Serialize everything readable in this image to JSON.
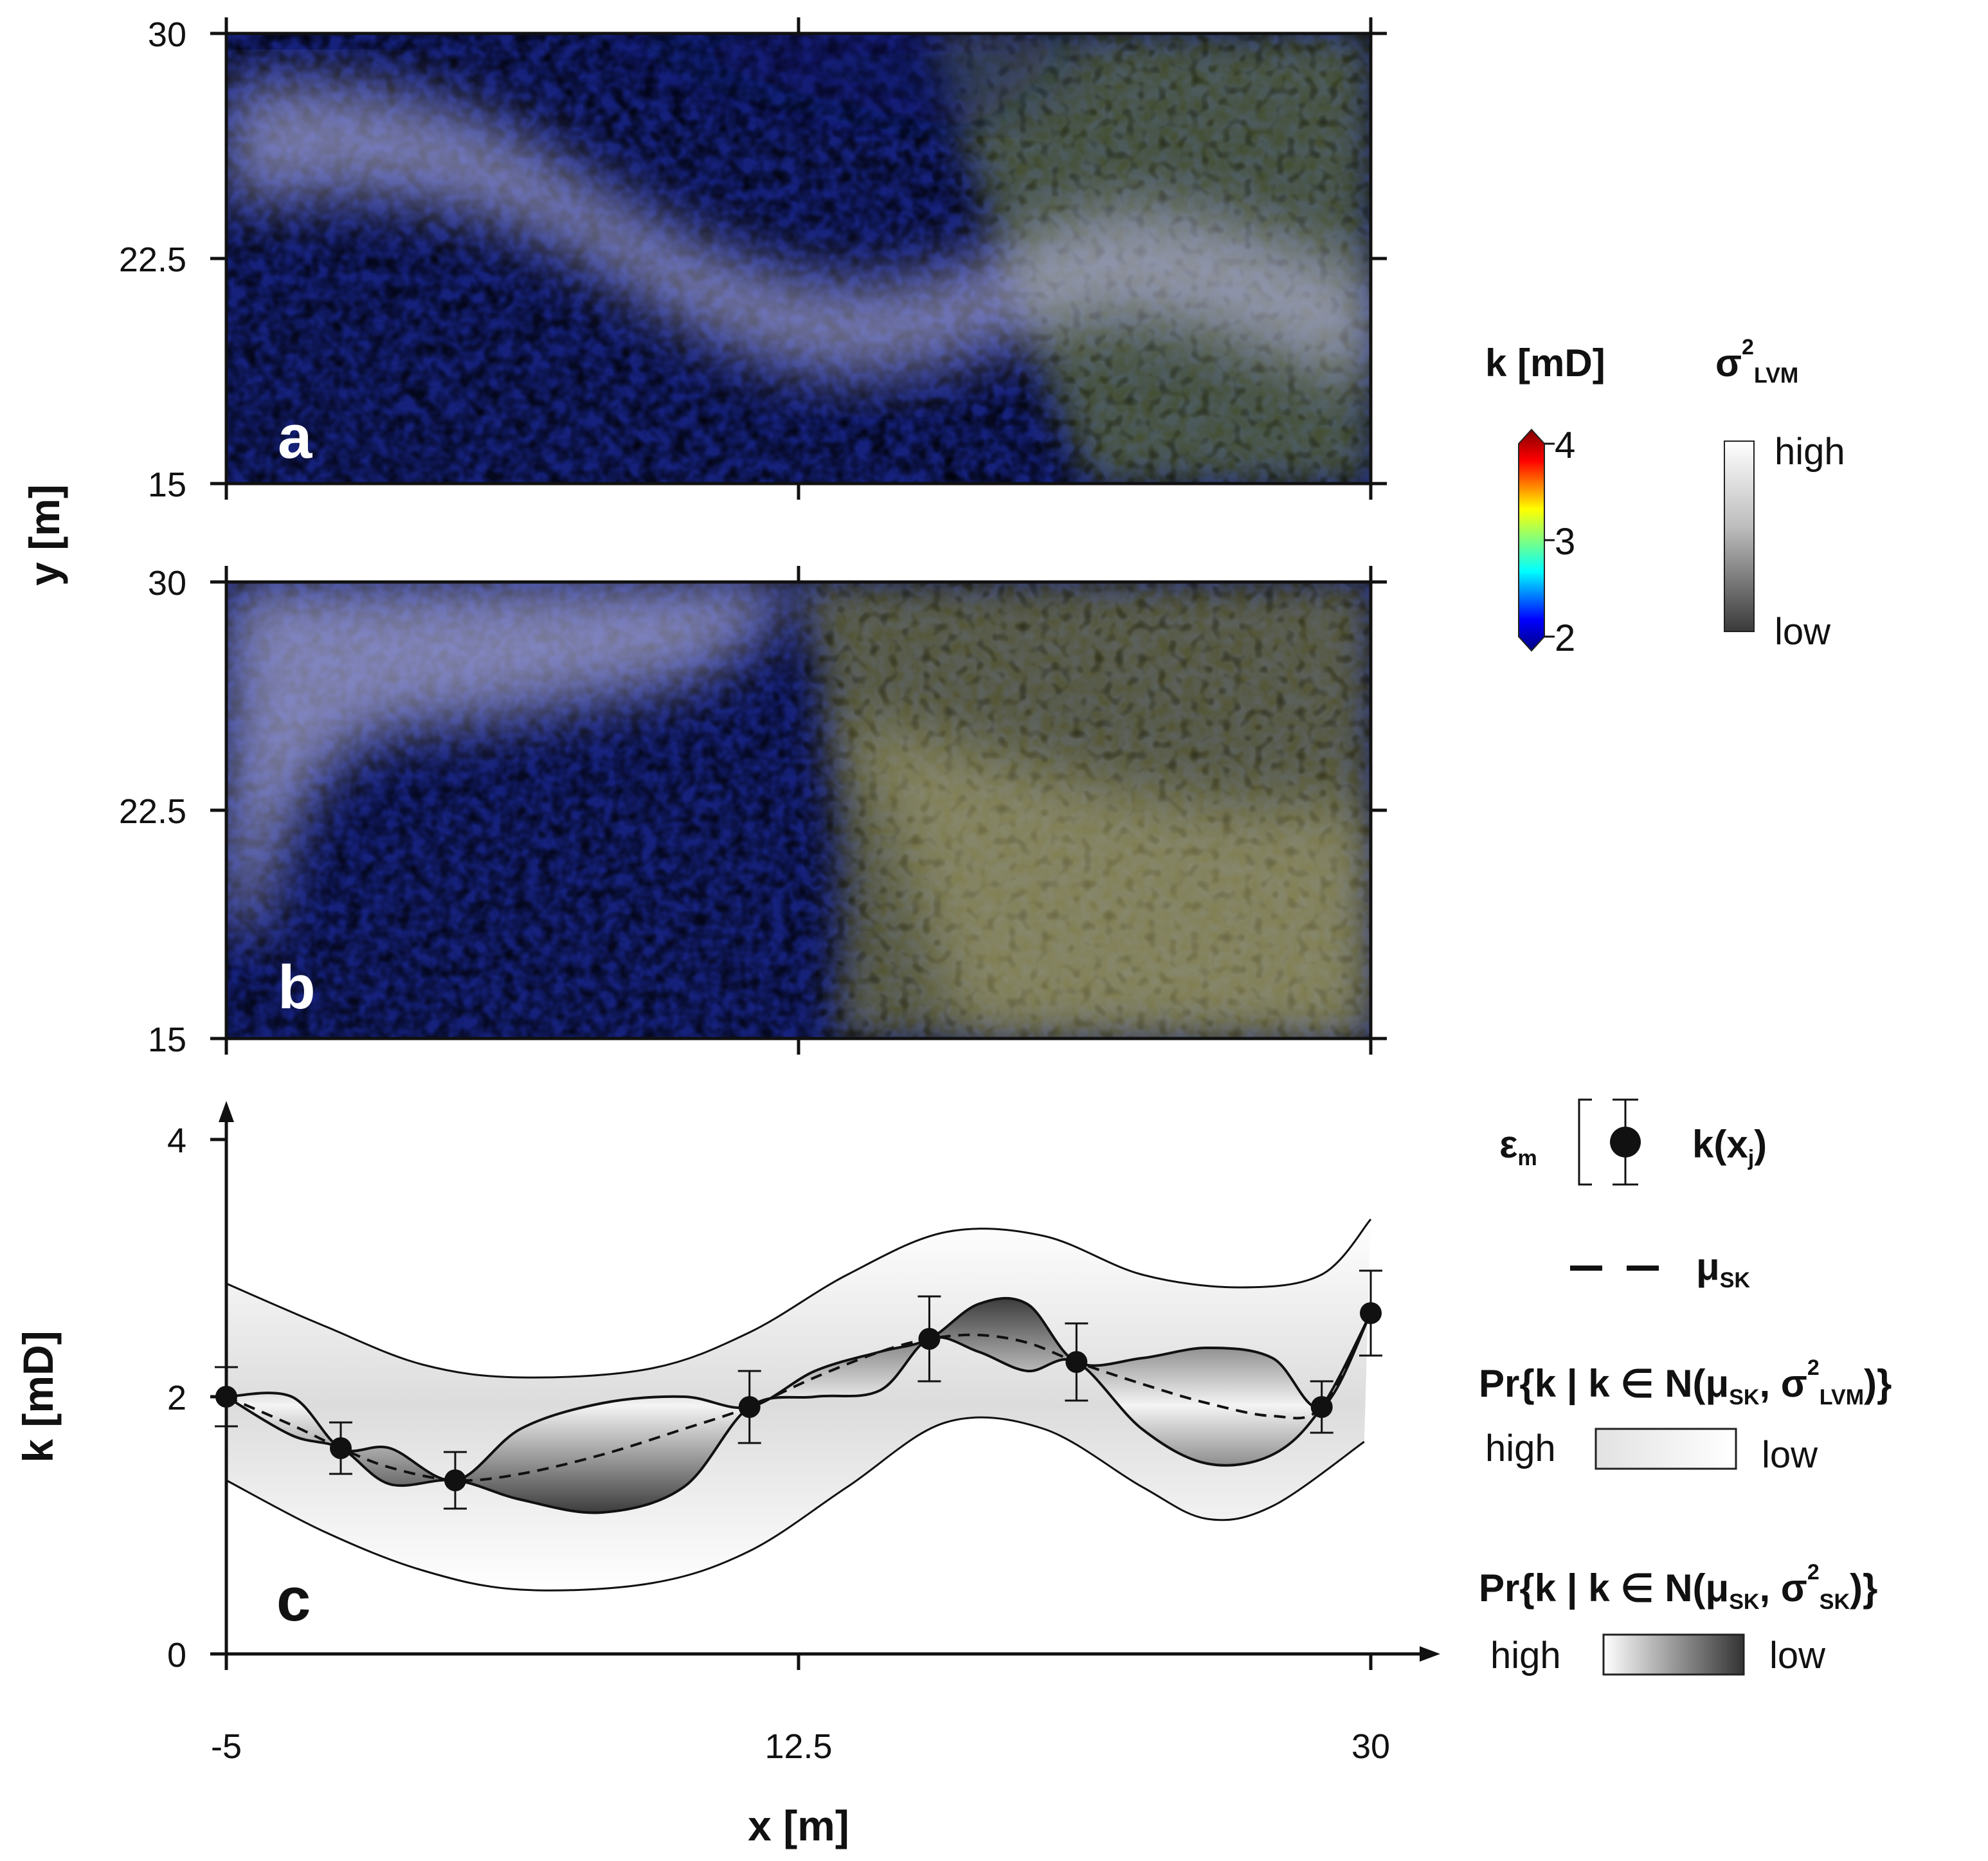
{
  "chart_data": [
    {
      "type": "heatmap",
      "panel": "a",
      "xlim": [
        -5,
        30
      ],
      "ylim": [
        15,
        30
      ],
      "x_ticks": [
        "-5",
        "12.5",
        "30"
      ],
      "y_ticks": [
        "15",
        "22.5",
        "30"
      ],
      "ylabel": "y [m]",
      "colorbar": {
        "label": "k [mD]",
        "min": 2,
        "max": 4,
        "ticks": [
          "4",
          "3",
          "2"
        ]
      },
      "overlay": {
        "label": "σ²LVM",
        "high": "high",
        "low": "low"
      }
    },
    {
      "type": "heatmap",
      "panel": "b",
      "xlim": [
        -5,
        30
      ],
      "ylim": [
        15,
        30
      ],
      "x_ticks": [
        "-5",
        "12.5",
        "30"
      ],
      "y_ticks": [
        "15",
        "22.5",
        "30"
      ]
    },
    {
      "type": "line",
      "panel": "c",
      "xlabel": "x [m]",
      "ylabel": "k [mD]",
      "xlim": [
        -5,
        30
      ],
      "ylim": [
        0,
        4.5
      ],
      "x_ticks": [
        "-5",
        "12.5",
        "30"
      ],
      "y_ticks": [
        "0",
        "2",
        "4"
      ],
      "points": {
        "name": "k(xj)",
        "x": [
          -5,
          -1.5,
          2,
          11,
          16.5,
          21,
          28.5,
          30
        ],
        "y": [
          2.0,
          1.6,
          1.35,
          1.92,
          2.45,
          2.27,
          1.92,
          2.65
        ],
        "err": [
          0.23,
          0.2,
          0.22,
          0.28,
          0.33,
          0.3,
          0.2,
          0.33
        ]
      },
      "mean_sk": {
        "name": "μSK",
        "x": [
          -5,
          -3,
          -1.5,
          0,
          2,
          4,
          6.5,
          9,
          11,
          13,
          15,
          16.5,
          18,
          19.5,
          21,
          23,
          25,
          27,
          28.5,
          30
        ],
        "y": [
          2.0,
          1.78,
          1.6,
          1.45,
          1.35,
          1.4,
          1.55,
          1.75,
          1.92,
          2.15,
          2.35,
          2.45,
          2.48,
          2.42,
          2.27,
          2.1,
          1.95,
          1.85,
          1.92,
          2.65
        ]
      },
      "sk_band_upper": {
        "x": [
          -5,
          -3,
          -1.5,
          0,
          2,
          4,
          6.5,
          9,
          11,
          13,
          15,
          16.5,
          18,
          19.5,
          21,
          23,
          25,
          27,
          28.5,
          30
        ],
        "y": [
          2.0,
          2.0,
          1.6,
          1.6,
          1.35,
          1.75,
          1.95,
          2.0,
          1.92,
          2.2,
          2.35,
          2.45,
          2.72,
          2.72,
          2.27,
          2.3,
          2.38,
          2.3,
          1.92,
          2.65
        ]
      },
      "sk_band_lower": {
        "x": [
          -5,
          -3,
          -1.5,
          0,
          2,
          4,
          6.5,
          9,
          11,
          13,
          15,
          16.5,
          18,
          19.5,
          21,
          23,
          25,
          27,
          28.5,
          30
        ],
        "y": [
          2.0,
          1.7,
          1.6,
          1.32,
          1.35,
          1.2,
          1.1,
          1.3,
          1.92,
          2.0,
          2.05,
          2.45,
          2.35,
          2.2,
          2.27,
          1.75,
          1.48,
          1.55,
          1.92,
          2.65
        ]
      },
      "lvm_upper": {
        "x": [
          -5,
          -2,
          1,
          4,
          8,
          11,
          14,
          17,
          20,
          23,
          26,
          28.5,
          30
        ],
        "y": [
          2.88,
          2.55,
          2.25,
          2.15,
          2.22,
          2.5,
          2.95,
          3.28,
          3.25,
          2.95,
          2.85,
          2.95,
          3.38
        ]
      },
      "lvm_lower": {
        "x": [
          -5,
          -2,
          1,
          4,
          8,
          11,
          14,
          17,
          20,
          23,
          25,
          27,
          29.8
        ],
        "y": [
          1.35,
          0.95,
          0.65,
          0.5,
          0.55,
          0.8,
          1.3,
          1.8,
          1.75,
          1.3,
          1.05,
          1.15,
          1.65
        ]
      }
    }
  ],
  "legend": {
    "k_title": "k [mD]",
    "sigma_lvm": "σ",
    "sigma_sup": "2",
    "sigma_sub": "LVM",
    "cb_ticks": [
      "4",
      "3",
      "2"
    ],
    "high": "high",
    "low": "low",
    "eps": "ε",
    "eps_sub": "m",
    "kxj": "k(x",
    "kxj_sub": "j",
    "kxj_close": ")",
    "mu": "μ",
    "mu_sub": "SK",
    "pr_lvm": "Pr{k | k ∈ N(μ",
    "pr_sk_sub": "SK",
    "pr_comma": ", σ",
    "pr_sup": "2",
    "pr_lvm_sub": "LVM",
    "pr_end": ")}",
    "pr_sk_sub2": "SK",
    "high2": "high",
    "low2": "low",
    "high3": "high",
    "low3": "low"
  },
  "colors": {
    "jet": [
      "#00007f",
      "#0000ff",
      "#00ffff",
      "#ffff00",
      "#ff0000",
      "#7f0000"
    ]
  }
}
